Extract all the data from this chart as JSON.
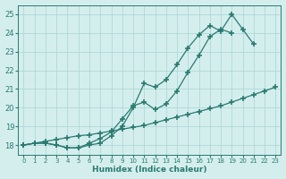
{
  "line1": {
    "x": [
      0,
      1,
      2,
      3,
      4,
      5,
      6,
      7,
      8,
      9,
      10,
      11,
      12,
      13,
      14,
      15,
      16,
      17,
      18,
      19,
      20,
      21,
      22,
      23
    ],
    "y": [
      18.0,
      18.1,
      18.1,
      18.0,
      17.85,
      17.85,
      18.0,
      18.1,
      18.5,
      19.0,
      20.0,
      21.3,
      21.1,
      21.5,
      22.3,
      23.2,
      23.9,
      24.4,
      24.1,
      25.0,
      24.2,
      23.4,
      null,
      null
    ]
  },
  "line2": {
    "x": [
      0,
      1,
      2,
      3,
      4,
      5,
      6,
      7,
      8,
      9,
      10,
      11,
      12,
      13,
      14,
      15,
      16,
      17,
      18,
      19,
      20,
      21,
      22,
      23
    ],
    "y": [
      18.0,
      18.1,
      18.1,
      18.0,
      17.85,
      17.85,
      18.1,
      18.35,
      18.7,
      19.4,
      20.1,
      20.3,
      19.9,
      20.2,
      20.9,
      21.9,
      22.8,
      23.8,
      24.2,
      24.0,
      null,
      null,
      null,
      null
    ]
  },
  "line3": {
    "x": [
      0,
      1,
      2,
      3,
      4,
      5,
      6,
      7,
      8,
      9,
      10,
      11,
      12,
      13,
      14,
      15,
      16,
      17,
      18,
      19,
      20,
      21,
      22,
      23
    ],
    "y": [
      18.0,
      18.1,
      18.2,
      18.3,
      18.4,
      18.5,
      18.55,
      18.65,
      18.75,
      18.85,
      18.95,
      19.05,
      19.2,
      19.35,
      19.5,
      19.65,
      19.8,
      19.95,
      20.1,
      20.3,
      20.5,
      20.7,
      20.9,
      21.1
    ]
  },
  "line_color": "#2a7a70",
  "bg_color": "#d4eeee",
  "grid_color": "#b0d8d8",
  "xlabel": "Humidex (Indice chaleur)",
  "ylim": [
    17.5,
    25.5
  ],
  "xlim": [
    -0.5,
    23.5
  ],
  "yticks": [
    18,
    19,
    20,
    21,
    22,
    23,
    24,
    25
  ],
  "xticks": [
    0,
    1,
    2,
    3,
    4,
    5,
    6,
    7,
    8,
    9,
    10,
    11,
    12,
    13,
    14,
    15,
    16,
    17,
    18,
    19,
    20,
    21,
    22,
    23
  ],
  "xtick_labels": [
    "0",
    "1",
    "2",
    "3",
    "4",
    "5",
    "6",
    "7",
    "8",
    "9",
    "10",
    "11",
    "12",
    "13",
    "14",
    "15",
    "16",
    "17",
    "18",
    "19",
    "20",
    "21",
    "22",
    "23"
  ]
}
